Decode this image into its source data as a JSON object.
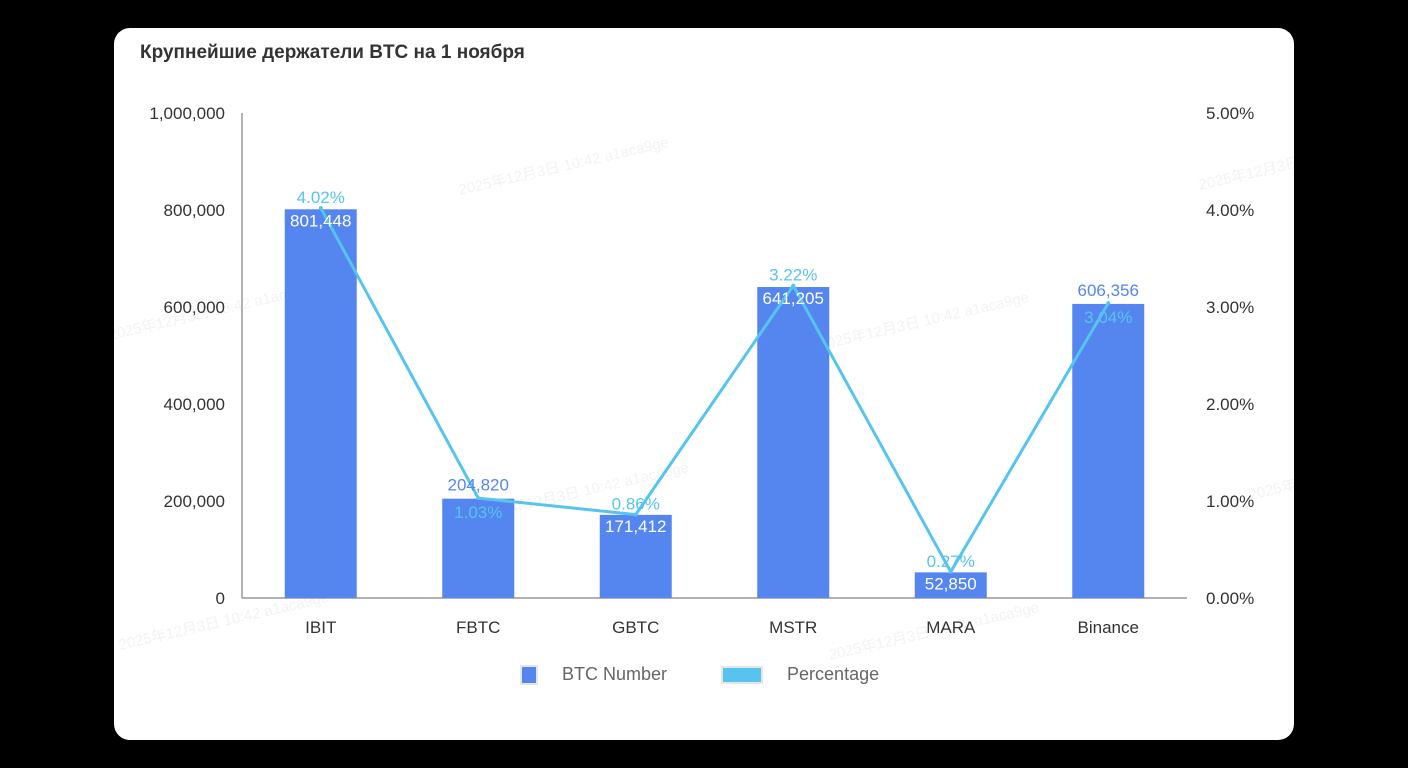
{
  "chart_data": {
    "type": "bar",
    "title": "Крупнейшие держатели BTC на 1 ноября",
    "categories": [
      "IBIT",
      "FBTC",
      "GBTC",
      "MSTR",
      "MARA",
      "Binance"
    ],
    "series": [
      {
        "name": "BTC Number",
        "type": "bar",
        "axis": "left",
        "color": "#5585ee",
        "values": [
          801448,
          204820,
          171412,
          641205,
          52850,
          606356
        ],
        "labels": [
          "801,448",
          "204,820",
          "171,412",
          "641,205",
          "52,850",
          "606,356"
        ]
      },
      {
        "name": "Percentage",
        "type": "line",
        "axis": "right",
        "color": "#56c4ee",
        "values": [
          4.02,
          1.03,
          0.86,
          3.22,
          0.27,
          3.04
        ],
        "labels": [
          "4.02%",
          "1.03%",
          "0.86%",
          "3.22%",
          "0.27%",
          "3.04%"
        ]
      }
    ],
    "y_left": {
      "range": [
        0,
        1000000
      ],
      "ticks": [
        "0",
        "200,000",
        "400,000",
        "600,000",
        "800,000",
        "1,000,000"
      ]
    },
    "y_right": {
      "range": [
        0,
        5
      ],
      "ticks": [
        "0.00%",
        "1.00%",
        "2.00%",
        "3.00%",
        "4.00%",
        "5.00%"
      ]
    },
    "grid": false,
    "legend_placement": "bottom",
    "watermark": "2025年12月3日 10:42 a1aca9ge"
  }
}
